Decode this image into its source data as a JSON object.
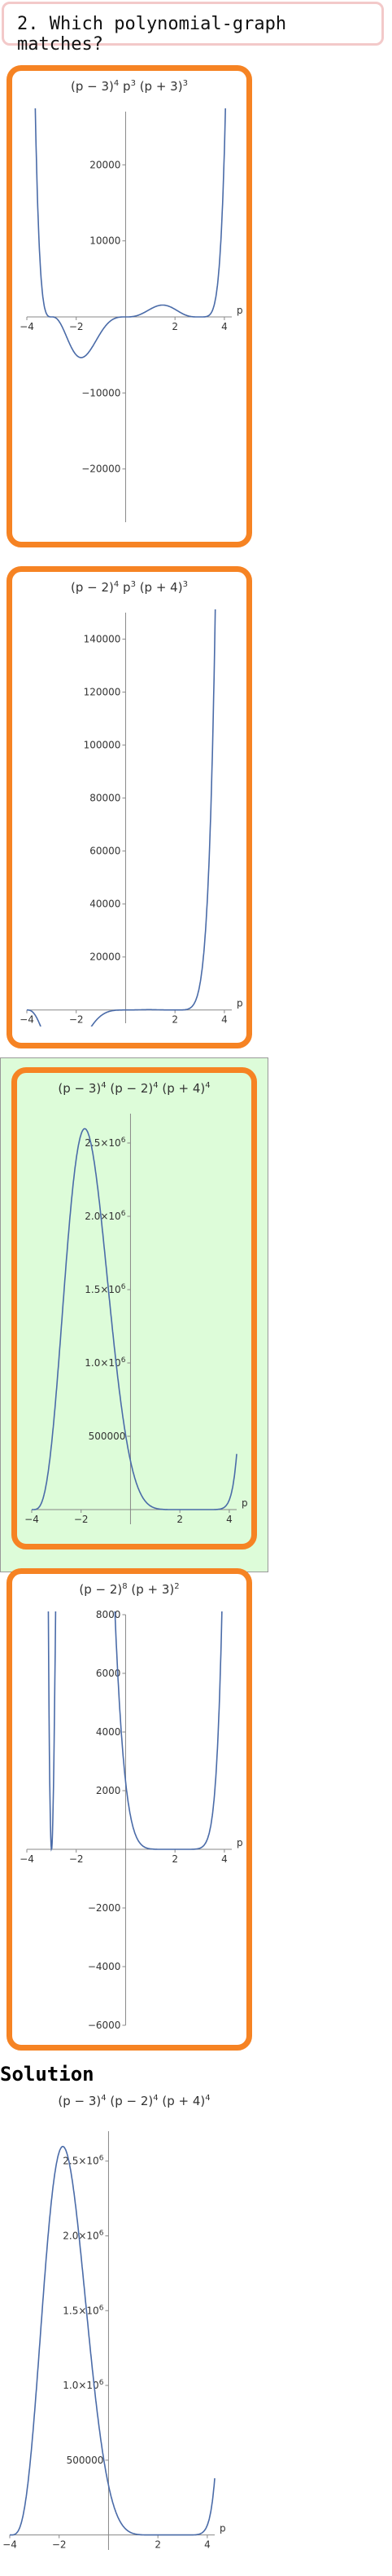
{
  "question": {
    "text": "2. Which polynomial‐graph matches?"
  },
  "solution_heading": "Solution",
  "colors": {
    "card_border": "#f68323",
    "highlight": "#ddfcd9",
    "curve": "#4a6ba8",
    "header_border": "#f3c9c9"
  },
  "chart_data": [
    {
      "type": "line",
      "title": "(p − 3)^4 p^3 (p + 3)^3",
      "xlabel": "p",
      "factors": [
        [
          3,
          4
        ],
        [
          0,
          3
        ],
        [
          -3,
          3
        ]
      ],
      "xlim": [
        -4,
        4.3
      ],
      "ylim": [
        -27000,
        27000
      ],
      "xticks": [
        -4,
        -2,
        2,
        4
      ],
      "yticks": [
        -20000,
        -10000,
        10000,
        20000
      ],
      "xtick_labels": [
        "−4",
        "−2",
        "2",
        "4"
      ],
      "ytick_labels": [
        "−20000",
        "−10000",
        "10000",
        "20000"
      ]
    },
    {
      "type": "line",
      "title": "(p − 2)^4 p^3 (p + 4)^3",
      "xlabel": "p",
      "factors": [
        [
          2,
          4
        ],
        [
          0,
          3
        ],
        [
          -4,
          3
        ]
      ],
      "xlim": [
        -4,
        4.3
      ],
      "ylim": [
        -5000,
        150000
      ],
      "xticks": [
        -4,
        -2,
        2,
        4
      ],
      "yticks": [
        20000,
        40000,
        60000,
        80000,
        100000,
        120000,
        140000
      ],
      "xtick_labels": [
        "−4",
        "−2",
        "2",
        "4"
      ],
      "ytick_labels": [
        "20000",
        "40000",
        "60000",
        "80000",
        "100000",
        "120000",
        "140000"
      ]
    },
    {
      "type": "line",
      "title": "(p − 3)^4 (p − 2)^4 (p + 4)^4",
      "xlabel": "p",
      "factors": [
        [
          3,
          4
        ],
        [
          2,
          4
        ],
        [
          -4,
          4
        ]
      ],
      "xlim": [
        -4,
        4.3
      ],
      "ylim": [
        -100000,
        2700000
      ],
      "xticks": [
        -4,
        -2,
        2,
        4
      ],
      "yticks": [
        500000,
        1000000,
        1500000,
        2000000,
        2500000
      ],
      "xtick_labels": [
        "−4",
        "−2",
        "2",
        "4"
      ],
      "ytick_labels": [
        "500000",
        "1.0×10^6",
        "1.5×10^6",
        "2.0×10^6",
        "2.5×10^6"
      ],
      "selected": true
    },
    {
      "type": "line",
      "title": "(p − 2)^8 (p + 3)^2",
      "xlabel": "p",
      "factors": [
        [
          2,
          8
        ],
        [
          -3,
          2
        ]
      ],
      "xlim": [
        -4,
        4.3
      ],
      "ylim": [
        -6000,
        8000
      ],
      "xticks": [
        -4,
        -2,
        2,
        4
      ],
      "yticks": [
        -6000,
        -4000,
        -2000,
        2000,
        4000,
        6000,
        8000
      ],
      "xtick_labels": [
        "−4",
        "−2",
        "2",
        "4"
      ],
      "ytick_labels": [
        "−6000",
        "−4000",
        "−2000",
        "2000",
        "4000",
        "6000",
        "8000"
      ]
    },
    {
      "type": "line",
      "title": "(p − 3)^4 (p − 2)^4 (p + 4)^4",
      "xlabel": "p",
      "factors": [
        [
          3,
          4
        ],
        [
          2,
          4
        ],
        [
          -4,
          4
        ]
      ],
      "xlim": [
        -4,
        4.3
      ],
      "ylim": [
        -100000,
        2700000
      ],
      "xticks": [
        -4,
        -2,
        2,
        4
      ],
      "yticks": [
        500000,
        1000000,
        1500000,
        2000000,
        2500000
      ],
      "xtick_labels": [
        "−4",
        "−2",
        "2",
        "4"
      ],
      "ytick_labels": [
        "500000",
        "1.0×10^6",
        "1.5×10^6",
        "2.0×10^6",
        "2.5×10^6"
      ]
    }
  ]
}
